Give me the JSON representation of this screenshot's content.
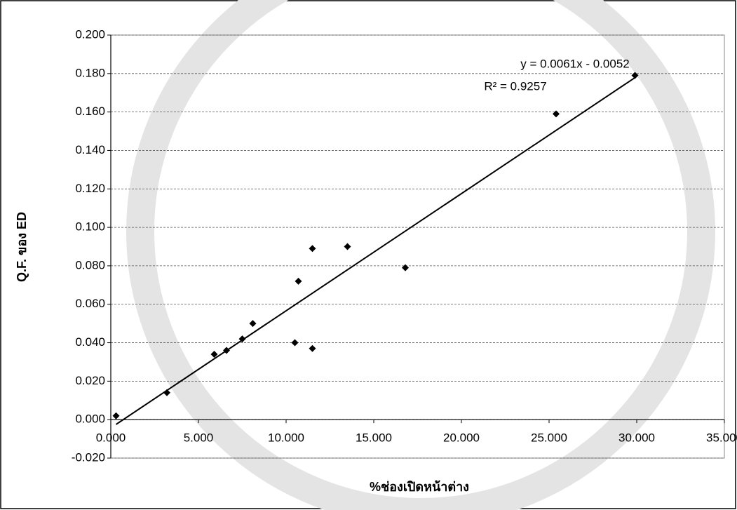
{
  "chart_data": {
    "type": "scatter",
    "x_label": "%ช่องเปิดหน้าต่าง",
    "y_label": "Q.F. ของ ED",
    "equation": "y = 0.0061x - 0.0052",
    "r_squared": "R² = 0.9257",
    "color": "#000000",
    "grid": true,
    "x": [
      0.3,
      3.2,
      5.9,
      6.6,
      7.5,
      8.1,
      10.5,
      11.5,
      10.7,
      11.5,
      13.5,
      16.8,
      25.4,
      29.9
    ],
    "values": [
      0.002,
      0.014,
      0.034,
      0.036,
      0.042,
      0.05,
      0.04,
      0.037,
      0.072,
      0.089,
      0.09,
      0.079,
      0.159,
      0.179
    ],
    "xlim": [
      0,
      35
    ],
    "xticks": [
      {
        "value": 0,
        "label": "0.000"
      },
      {
        "value": 5,
        "label": "5.000"
      },
      {
        "value": 10,
        "label": "10.000"
      },
      {
        "value": 15,
        "label": "15.000"
      },
      {
        "value": 20,
        "label": "20.000"
      },
      {
        "value": 25,
        "label": "25.000"
      },
      {
        "value": 30,
        "label": "30.000"
      },
      {
        "value": 35,
        "label": "35.000"
      }
    ],
    "ylim": [
      -0.02,
      0.2
    ],
    "yticks": [
      {
        "value": -0.02,
        "label": "-0.020"
      },
      {
        "value": 0,
        "label": "0.000"
      },
      {
        "value": 0.02,
        "label": "0.020"
      },
      {
        "value": 0.04,
        "label": "0.040"
      },
      {
        "value": 0.06,
        "label": "0.060"
      },
      {
        "value": 0.08,
        "label": "0.080"
      },
      {
        "value": 0.1,
        "label": "0.100"
      },
      {
        "value": 0.12,
        "label": "0.120"
      },
      {
        "value": 0.14,
        "label": "0.140"
      },
      {
        "value": 0.16,
        "label": "0.160"
      },
      {
        "value": 0.18,
        "label": "0.180"
      },
      {
        "value": 0.2,
        "label": "0.200"
      }
    ]
  }
}
